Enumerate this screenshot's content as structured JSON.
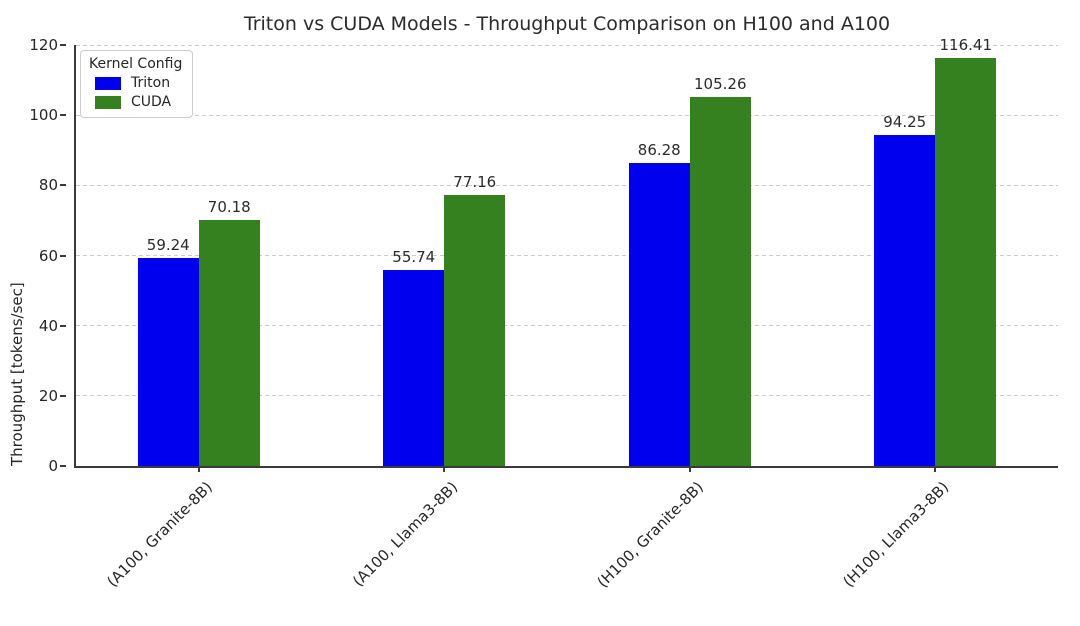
{
  "chart_data": {
    "type": "bar",
    "title": "Triton vs CUDA Models - Throughput Comparison on H100 and A100",
    "ylabel": "Throughput [tokens/sec]",
    "xlabel": "",
    "categories": [
      "(A100, Granite-8B)",
      "(A100, Llama3-8B)",
      "(H100, Granite-8B)",
      "(H100, Llama3-8B)"
    ],
    "series": [
      {
        "name": "Triton",
        "color": "#0000ee",
        "values": [
          59.24,
          55.74,
          86.28,
          94.25
        ]
      },
      {
        "name": "CUDA",
        "color": "#35801f",
        "values": [
          70.18,
          77.16,
          105.26,
          116.41
        ]
      }
    ],
    "ylim": [
      0,
      120
    ],
    "yticks": [
      0,
      20,
      40,
      60,
      80,
      100,
      120
    ],
    "grid": "horizontal-dashed",
    "legend": {
      "title": "Kernel Config",
      "position": "upper-left"
    }
  },
  "colors": {
    "grid": "#cccccc",
    "spine": "#3a3a3a",
    "text": "#262626",
    "background": "#ffffff"
  }
}
